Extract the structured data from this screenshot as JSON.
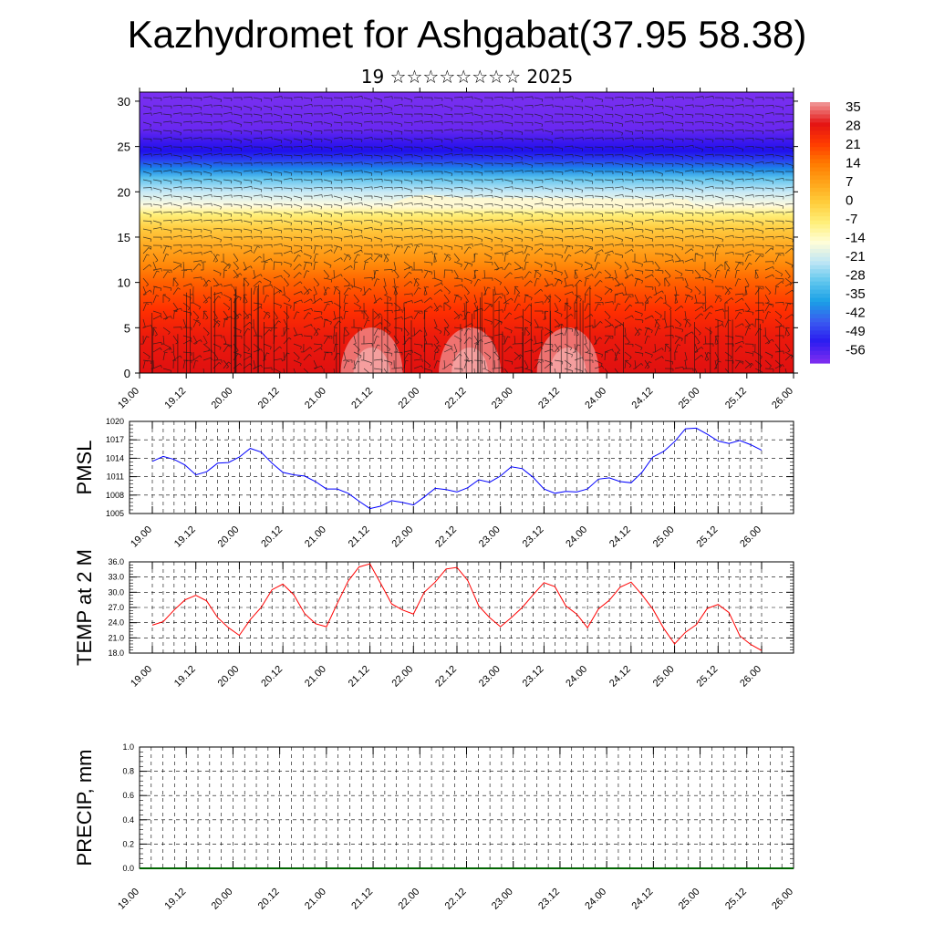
{
  "title": "Kazhydromet for Ashgabat(37.95 58.38)",
  "subtitle": "19 ☆☆☆☆☆☆☆☆ 2025",
  "chart_data": [
    {
      "type": "heatmap",
      "name": "cross-section",
      "xlabel": "",
      "ylabel": "",
      "x_ticks": [
        "19.00",
        "19.12",
        "20.00",
        "20.12",
        "21.00",
        "21.12",
        "22.00",
        "22.12",
        "23.00",
        "23.12",
        "24.00",
        "24.12",
        "25.00",
        "25.12",
        "26.00"
      ],
      "y_ticks": [
        "0",
        "5",
        "10",
        "15",
        "20",
        "25",
        "30"
      ],
      "ylim": [
        0,
        31
      ],
      "colorbar_labels": [
        "35",
        "28",
        "21",
        "14",
        "7",
        "0",
        "-7",
        "-14",
        "-21",
        "-28",
        "-35",
        "-42",
        "-49",
        "-56"
      ],
      "colorbar_colors": [
        "#ef8f8f",
        "#e41414",
        "#ff3a00",
        "#ff7a00",
        "#ffa51a",
        "#ffce3c",
        "#fff07a",
        "#fffdd8",
        "#bfe6f5",
        "#5ec6ee",
        "#1aa0e6",
        "#3a5cf0",
        "#2a1cf0",
        "#7a2cf0"
      ]
    },
    {
      "type": "line",
      "name": "pmsl",
      "ylabel": "PMSL",
      "ylim": [
        1005,
        1020
      ],
      "y_ticks": [
        "1005",
        "1008",
        "1011",
        "1014",
        "1017",
        "1020"
      ],
      "x_ticks": [
        "19.00",
        "19.12",
        "20.00",
        "20.12",
        "21.00",
        "21.12",
        "22.00",
        "22.12",
        "23.00",
        "23.12",
        "24.00",
        "24.12",
        "25.00",
        "25.12",
        "26.00"
      ],
      "color": "#0000ff",
      "values": [
        1013.5,
        1014.3,
        1013.8,
        1012.9,
        1011.3,
        1011.8,
        1013.2,
        1013.3,
        1014.2,
        1015.6,
        1015.0,
        1013.2,
        1011.7,
        1011.3,
        1011.1,
        1010.2,
        1009.0,
        1009.0,
        1008.3,
        1007.0,
        1005.8,
        1006.2,
        1007.1,
        1006.8,
        1006.4,
        1007.7,
        1009.1,
        1008.9,
        1008.5,
        1009.2,
        1010.5,
        1010.1,
        1011.1,
        1012.6,
        1012.3,
        1010.9,
        1009.0,
        1008.3,
        1008.6,
        1008.5,
        1009.0,
        1010.6,
        1010.8,
        1010.2,
        1010.0,
        1011.7,
        1014.2,
        1015.1,
        1016.7,
        1018.8,
        1018.9,
        1017.9,
        1016.8,
        1016.4,
        1016.9,
        1016.2,
        1015.3
      ]
    },
    {
      "type": "line",
      "name": "temp",
      "ylabel": "TEMP at 2 M",
      "ylim": [
        18.0,
        36.0
      ],
      "y_ticks": [
        "18.0",
        "21.0",
        "24.0",
        "27.0",
        "30.0",
        "33.0",
        "36.0"
      ],
      "x_ticks": [
        "19.00",
        "19.12",
        "20.00",
        "20.12",
        "21.00",
        "21.12",
        "22.00",
        "22.12",
        "23.00",
        "23.12",
        "24.00",
        "24.12",
        "25.00",
        "25.12",
        "26.00"
      ],
      "color": "#ff0000",
      "values": [
        23.5,
        24.2,
        26.5,
        28.5,
        29.4,
        28.3,
        25.0,
        23.0,
        21.5,
        24.6,
        27.0,
        30.5,
        31.6,
        29.5,
        25.8,
        23.8,
        23.2,
        27.8,
        32.2,
        35.0,
        35.6,
        31.7,
        27.7,
        26.5,
        25.7,
        30.0,
        32.0,
        34.6,
        34.9,
        32.3,
        27.3,
        25.0,
        23.2,
        25.0,
        27.0,
        29.5,
        31.9,
        31.1,
        27.3,
        25.7,
        23.0,
        26.7,
        28.4,
        31.0,
        32.0,
        29.5,
        26.7,
        22.9,
        19.8,
        22.1,
        23.6,
        26.8,
        27.6,
        26.0,
        21.4,
        19.7,
        18.5
      ]
    },
    {
      "type": "line",
      "name": "precip",
      "ylabel": "PRECIP, mm",
      "ylim": [
        0.0,
        1.0
      ],
      "y_ticks": [
        "0.0",
        "0.2",
        "0.4",
        "0.6",
        "0.8",
        "1.0"
      ],
      "x_ticks": [
        "19.00",
        "19.12",
        "20.00",
        "20.12",
        "21.00",
        "21.12",
        "22.00",
        "22.12",
        "23.00",
        "23.12",
        "24.00",
        "24.12",
        "25.00",
        "25.12",
        "26.00"
      ],
      "color": "#006400",
      "values": [
        0,
        0,
        0,
        0,
        0,
        0,
        0,
        0,
        0,
        0,
        0,
        0,
        0,
        0,
        0,
        0,
        0,
        0,
        0,
        0,
        0,
        0,
        0,
        0,
        0,
        0,
        0,
        0,
        0,
        0,
        0,
        0,
        0,
        0,
        0,
        0,
        0,
        0,
        0,
        0,
        0,
        0,
        0,
        0,
        0,
        0,
        0,
        0,
        0,
        0,
        0,
        0,
        0,
        0,
        0,
        0,
        0
      ]
    }
  ]
}
